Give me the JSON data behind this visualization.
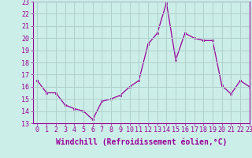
{
  "x": [
    0,
    1,
    2,
    3,
    4,
    5,
    6,
    7,
    8,
    9,
    10,
    11,
    12,
    13,
    14,
    15,
    16,
    17,
    18,
    19,
    20,
    21,
    22,
    23
  ],
  "y": [
    16.5,
    15.5,
    15.5,
    14.5,
    14.2,
    14.0,
    13.3,
    14.8,
    15.0,
    15.3,
    16.0,
    16.5,
    19.5,
    20.4,
    22.9,
    18.2,
    20.4,
    20.0,
    19.8,
    19.8,
    16.1,
    15.4,
    16.5,
    16.0
  ],
  "ylim": [
    13,
    23
  ],
  "xlim": [
    -0.5,
    23
  ],
  "yticks": [
    13,
    14,
    15,
    16,
    17,
    18,
    19,
    20,
    21,
    22,
    23
  ],
  "xticks": [
    0,
    1,
    2,
    3,
    4,
    5,
    6,
    7,
    8,
    9,
    10,
    11,
    12,
    13,
    14,
    15,
    16,
    17,
    18,
    19,
    20,
    21,
    22,
    23
  ],
  "xtick_labels": [
    "0",
    "1",
    "2",
    "3",
    "4",
    "5",
    "6",
    "7",
    "8",
    "9",
    "10",
    "11",
    "12",
    "13",
    "14",
    "15",
    "16",
    "17",
    "18",
    "19",
    "20",
    "21",
    "22",
    "23"
  ],
  "xlabel": "Windchill (Refroidissement éolien,°C)",
  "line_color": "#990099",
  "marker": "s",
  "marker_size": 2.0,
  "bg_color": "#cceee8",
  "grid_color": "#b0d0cc",
  "tick_color": "#990099",
  "label_color": "#990099",
  "tick_fontsize": 6.0,
  "xlabel_fontsize": 7.0
}
